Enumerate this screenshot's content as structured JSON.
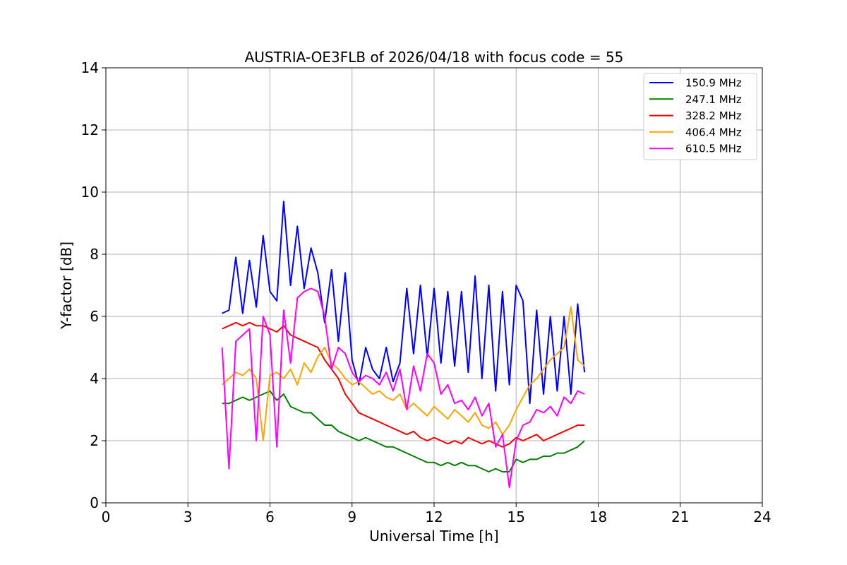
{
  "chart_data": {
    "type": "line",
    "title": "AUSTRIA-OE3FLB of 2026/04/18 with focus code = 55",
    "xlabel": "Universal Time [h]",
    "ylabel": "Y-factor [dB]",
    "xlim": [
      0,
      24
    ],
    "ylim": [
      0,
      14
    ],
    "xticks": [
      0,
      3,
      6,
      9,
      12,
      15,
      18,
      21,
      24
    ],
    "yticks": [
      0,
      2,
      4,
      6,
      8,
      10,
      12,
      14
    ],
    "grid": true,
    "legend_position": "top-right",
    "x": [
      4.25,
      4.5,
      4.75,
      5.0,
      5.25,
      5.5,
      5.75,
      6.0,
      6.25,
      6.5,
      6.75,
      7.0,
      7.25,
      7.5,
      7.75,
      8.0,
      8.25,
      8.5,
      8.75,
      9.0,
      9.25,
      9.5,
      9.75,
      10.0,
      10.25,
      10.5,
      10.75,
      11.0,
      11.25,
      11.5,
      11.75,
      12.0,
      12.25,
      12.5,
      12.75,
      13.0,
      13.25,
      13.5,
      13.75,
      14.0,
      14.25,
      14.5,
      14.75,
      15.0,
      15.25,
      15.5,
      15.75,
      16.0,
      16.25,
      16.5,
      16.75,
      17.0,
      17.25,
      17.5
    ],
    "series": [
      {
        "name": "150.9 MHz",
        "color": "#0000ff",
        "values": [
          6.1,
          6.2,
          7.9,
          6.1,
          7.8,
          6.3,
          8.6,
          6.8,
          6.5,
          9.7,
          7.0,
          8.9,
          6.9,
          8.2,
          7.4,
          5.8,
          7.5,
          5.2,
          7.4,
          4.6,
          3.8,
          5.0,
          4.3,
          4.0,
          5.0,
          3.9,
          4.5,
          6.9,
          4.8,
          7.0,
          4.7,
          6.9,
          4.5,
          6.8,
          4.4,
          6.8,
          4.2,
          7.3,
          4.0,
          7.0,
          3.6,
          6.8,
          3.8,
          7.0,
          6.5,
          3.2,
          6.2,
          3.5,
          6.0,
          3.6,
          6.0,
          3.5,
          6.4,
          4.2
        ]
      },
      {
        "name": "247.1 MHz",
        "color": "#008000",
        "values": [
          3.2,
          3.2,
          3.3,
          3.4,
          3.3,
          3.4,
          3.5,
          3.6,
          3.3,
          3.5,
          3.1,
          3.0,
          2.9,
          2.9,
          2.7,
          2.5,
          2.5,
          2.3,
          2.2,
          2.1,
          2.0,
          2.1,
          2.0,
          1.9,
          1.8,
          1.8,
          1.7,
          1.6,
          1.5,
          1.4,
          1.3,
          1.3,
          1.2,
          1.3,
          1.2,
          1.3,
          1.2,
          1.2,
          1.1,
          1.0,
          1.1,
          1.0,
          1.0,
          1.4,
          1.3,
          1.4,
          1.4,
          1.5,
          1.5,
          1.6,
          1.6,
          1.7,
          1.8,
          2.0
        ]
      },
      {
        "name": "328.2 MHz",
        "color": "#ff0000",
        "values": [
          5.6,
          5.7,
          5.8,
          5.7,
          5.8,
          5.7,
          5.7,
          5.6,
          5.5,
          5.7,
          5.4,
          5.3,
          5.2,
          5.1,
          5.0,
          4.6,
          4.3,
          4.0,
          3.5,
          3.2,
          2.9,
          2.8,
          2.7,
          2.6,
          2.5,
          2.4,
          2.3,
          2.2,
          2.3,
          2.1,
          2.0,
          2.1,
          2.0,
          1.9,
          2.0,
          1.9,
          2.1,
          2.0,
          1.9,
          2.0,
          1.9,
          1.8,
          1.9,
          2.1,
          2.0,
          2.1,
          2.2,
          2.0,
          2.1,
          2.2,
          2.3,
          2.4,
          2.5,
          2.5
        ]
      },
      {
        "name": "406.4 MHz",
        "color": "#ffa500",
        "values": [
          3.8,
          4.0,
          4.2,
          4.1,
          4.3,
          4.0,
          2.0,
          4.1,
          4.2,
          4.0,
          4.3,
          3.8,
          4.5,
          4.2,
          4.7,
          5.0,
          4.5,
          4.3,
          4.0,
          3.8,
          3.9,
          3.7,
          3.5,
          3.6,
          3.4,
          3.3,
          3.5,
          3.0,
          3.2,
          3.0,
          2.8,
          3.1,
          2.9,
          2.7,
          3.0,
          2.8,
          2.6,
          2.9,
          2.5,
          2.4,
          2.6,
          2.2,
          2.5,
          3.0,
          3.4,
          3.8,
          4.0,
          4.3,
          4.6,
          4.8,
          5.0,
          6.3,
          4.6,
          4.4
        ]
      },
      {
        "name": "610.5 MHz",
        "color": "#ff00ff",
        "values": [
          5.0,
          1.1,
          5.2,
          5.4,
          5.6,
          2.0,
          6.0,
          5.4,
          1.8,
          6.2,
          4.5,
          6.6,
          6.8,
          6.9,
          6.8,
          6.0,
          4.3,
          5.0,
          4.8,
          4.2,
          3.9,
          4.1,
          4.0,
          3.8,
          4.2,
          3.6,
          4.3,
          3.0,
          4.4,
          3.6,
          4.8,
          4.5,
          3.5,
          3.8,
          3.2,
          3.3,
          3.0,
          3.4,
          2.8,
          3.2,
          1.8,
          2.2,
          0.5,
          2.0,
          2.5,
          2.6,
          3.0,
          2.9,
          3.1,
          2.8,
          3.4,
          3.2,
          3.6,
          3.5
        ]
      }
    ]
  }
}
